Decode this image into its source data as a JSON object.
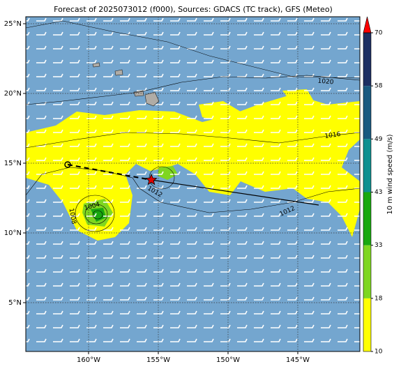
{
  "chart_data": {
    "type": "map",
    "title": "Forecast of 2025073012 (f000), Sources: GDACS (TC track), GFS (Meteo)",
    "xlim": [
      -164.5,
      -140.55
    ],
    "ylim": [
      1.5,
      25.5
    ],
    "xticks": [
      {
        "value": -160,
        "label": "160°W"
      },
      {
        "value": -155,
        "label": "155°W"
      },
      {
        "value": -150,
        "label": "150°W"
      },
      {
        "value": -145,
        "label": "145°W"
      }
    ],
    "yticks": [
      {
        "value": 5,
        "label": "5°N"
      },
      {
        "value": 10,
        "label": "10°N"
      },
      {
        "value": 15,
        "label": "15°N"
      },
      {
        "value": 20,
        "label": "20°N"
      },
      {
        "value": 25,
        "label": "25°N"
      }
    ],
    "grid": true,
    "colorbar": {
      "label": "10 m wind speed (m/s)",
      "ticks": [
        10,
        18,
        33,
        43,
        49,
        58,
        70
      ],
      "colors": [
        "#ffff00",
        "#7fd620",
        "#19a80f",
        "#0f9090",
        "#1a5a80",
        "#1d2f62"
      ],
      "extend_color": "#ff0000"
    },
    "track": {
      "past": {
        "lon": [
          -161.5,
          -155.5
        ],
        "lat": [
          14.9,
          13.8
        ]
      },
      "forecast": {
        "lon": [
          -155.5,
          -143.5
        ],
        "lat": [
          13.8,
          12.0
        ]
      }
    },
    "contour_labels": [
      1020,
      1016,
      1012,
      1012,
      1008,
      1004
    ]
  }
}
